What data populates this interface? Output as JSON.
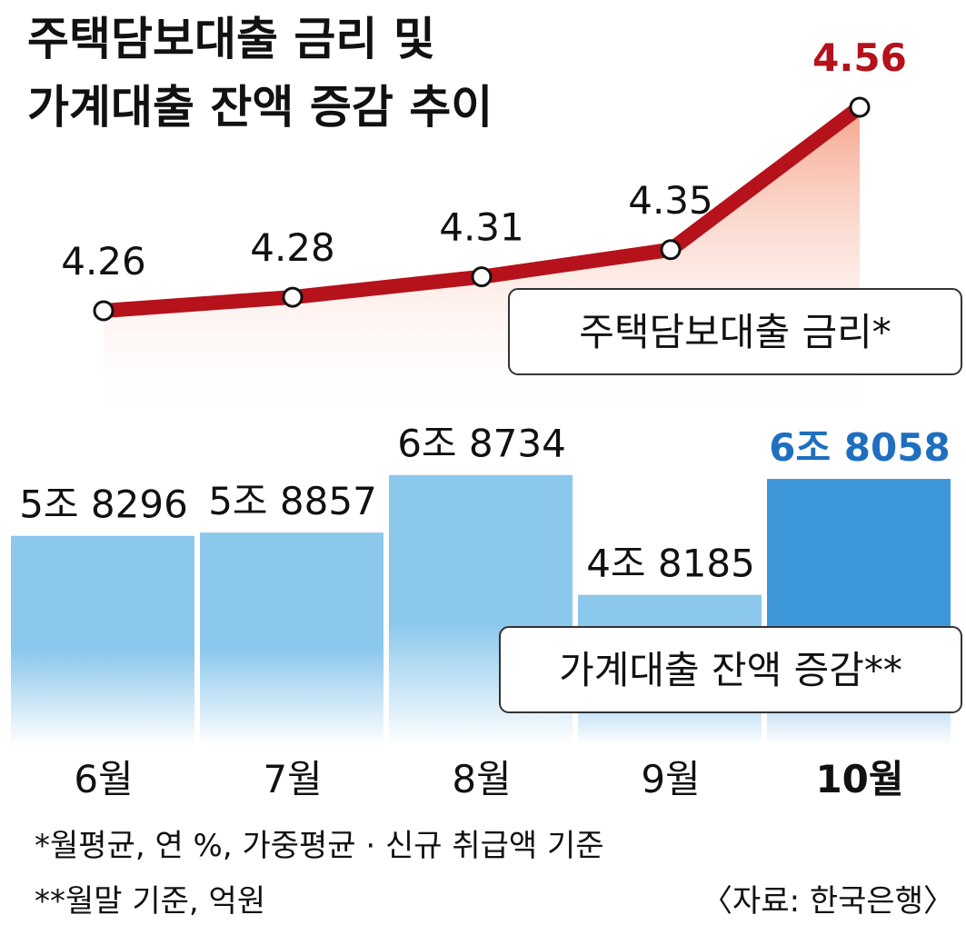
{
  "chart_data": {
    "type": "bar-line",
    "title": [
      "주택담보대출 금리 및",
      "가계대출 잔액 증감 추이"
    ],
    "categories": [
      "6월",
      "7월",
      "8월",
      "9월",
      "10월"
    ],
    "series": [
      {
        "name": "주택담보대출 금리*",
        "type": "line",
        "color": "#b5121b",
        "values": [
          4.26,
          4.28,
          4.31,
          4.35,
          4.56
        ]
      },
      {
        "name": "가계대출 잔액 증감**",
        "type": "bar",
        "color": "#8cc8ec",
        "values": [
          58296,
          58857,
          68734,
          48185,
          68058
        ],
        "value_labels": [
          "5조 8296",
          "5조 8857",
          "6조 8734",
          "4조 8185",
          "6조 8058"
        ]
      }
    ],
    "notes": [
      "*월평균, 연 %, 가중평균 · 신규 취급액 기준",
      "**월말 기준, 억원"
    ],
    "source": "〈자료: 한국은행〉"
  }
}
